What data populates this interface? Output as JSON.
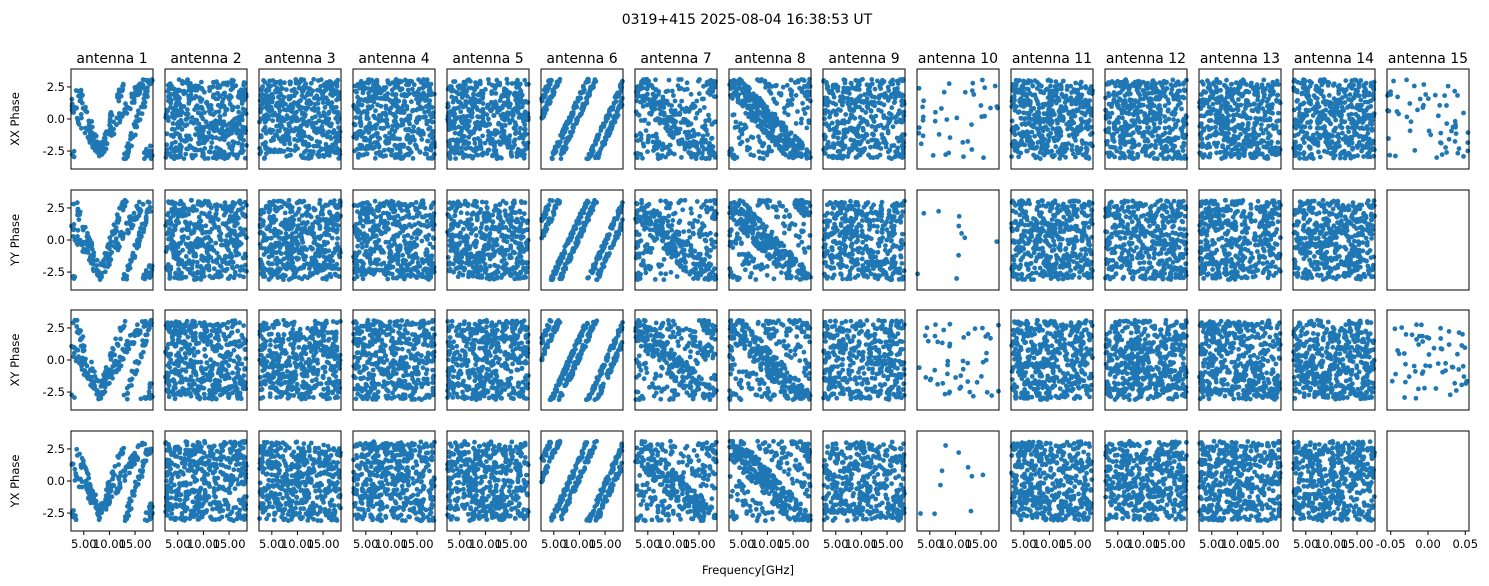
{
  "figure": {
    "title": "0319+415 2025-08-04 16:38:53 UT",
    "xlabel": "Frequency[GHz]"
  },
  "chart_data": {
    "type": "scatter",
    "title": "0319+415 2025-08-04 16:38:53 UT",
    "xlabel": "Frequency[GHz]",
    "marker_color": "#1f77b4",
    "grid": false,
    "legend": "none",
    "ylim": [
      -3.9,
      3.9
    ],
    "yticks": [
      {
        "value": 2.5,
        "label": "2.5"
      },
      {
        "value": 0.0,
        "label": "0.0"
      },
      {
        "value": -2.5,
        "label": "-2.5"
      }
    ],
    "xlim": [
      2.5,
      18.5
    ],
    "xticks": [
      {
        "value": 5.0,
        "label": "5.00"
      },
      {
        "value": 10.0,
        "label": "10.00"
      },
      {
        "value": 15.0,
        "label": "15.00"
      }
    ],
    "empty_xlim": [
      -0.055,
      0.055
    ],
    "empty_xticks": [
      {
        "value": -0.05,
        "label": "-0.05"
      },
      {
        "value": 0.0,
        "label": "0.00"
      },
      {
        "value": 0.05,
        "label": "0.05"
      }
    ],
    "antennas": [
      "antenna 1",
      "antenna 2",
      "antenna 3",
      "antenna 4",
      "antenna 5",
      "antenna 6",
      "antenna 7",
      "antenna 8",
      "antenna 9",
      "antenna 10",
      "antenna 11",
      "antenna 12",
      "antenna 13",
      "antenna 14",
      "antenna 15"
    ],
    "rows": [
      "XX Phase",
      "YY Phase",
      "XY Phase",
      "YX Phase"
    ],
    "panels": [
      [
        {
          "pattern": "v",
          "n": 260
        },
        {
          "pattern": "random",
          "n": 480
        },
        {
          "pattern": "random",
          "n": 480
        },
        {
          "pattern": "random",
          "n": 480
        },
        {
          "pattern": "random",
          "n": 480
        },
        {
          "pattern": "stripes",
          "n": 360
        },
        {
          "pattern": "diag",
          "n": 380
        },
        {
          "pattern": "diag-neg",
          "n": 420
        },
        {
          "pattern": "random",
          "n": 420
        },
        {
          "pattern": "sparse",
          "n": 40
        },
        {
          "pattern": "random",
          "n": 480
        },
        {
          "pattern": "random",
          "n": 480
        },
        {
          "pattern": "random",
          "n": 480
        },
        {
          "pattern": "random",
          "n": 480
        },
        {
          "pattern": "sparse",
          "n": 60
        }
      ],
      [
        {
          "pattern": "v",
          "n": 260
        },
        {
          "pattern": "random",
          "n": 480
        },
        {
          "pattern": "random",
          "n": 480
        },
        {
          "pattern": "random",
          "n": 480
        },
        {
          "pattern": "random",
          "n": 480
        },
        {
          "pattern": "stripes",
          "n": 360
        },
        {
          "pattern": "diag",
          "n": 380
        },
        {
          "pattern": "diag-neg",
          "n": 420
        },
        {
          "pattern": "random",
          "n": 420
        },
        {
          "pattern": "sparse",
          "n": 10
        },
        {
          "pattern": "random",
          "n": 480
        },
        {
          "pattern": "random",
          "n": 480
        },
        {
          "pattern": "random",
          "n": 480
        },
        {
          "pattern": "random",
          "n": 480
        },
        {
          "pattern": "empty",
          "n": 0
        }
      ],
      [
        {
          "pattern": "v",
          "n": 260
        },
        {
          "pattern": "random",
          "n": 480
        },
        {
          "pattern": "random",
          "n": 480
        },
        {
          "pattern": "random",
          "n": 480
        },
        {
          "pattern": "random",
          "n": 480
        },
        {
          "pattern": "stripes",
          "n": 360
        },
        {
          "pattern": "diag",
          "n": 380
        },
        {
          "pattern": "diag-neg",
          "n": 420
        },
        {
          "pattern": "random",
          "n": 420
        },
        {
          "pattern": "sparse",
          "n": 50
        },
        {
          "pattern": "random",
          "n": 480
        },
        {
          "pattern": "random",
          "n": 480
        },
        {
          "pattern": "random",
          "n": 480
        },
        {
          "pattern": "random",
          "n": 480
        },
        {
          "pattern": "sparse",
          "n": 60
        }
      ],
      [
        {
          "pattern": "v",
          "n": 260
        },
        {
          "pattern": "random",
          "n": 480
        },
        {
          "pattern": "random",
          "n": 480
        },
        {
          "pattern": "random",
          "n": 480
        },
        {
          "pattern": "random",
          "n": 480
        },
        {
          "pattern": "stripes",
          "n": 360
        },
        {
          "pattern": "diag",
          "n": 380
        },
        {
          "pattern": "diag-neg",
          "n": 420
        },
        {
          "pattern": "random",
          "n": 420
        },
        {
          "pattern": "sparse",
          "n": 10
        },
        {
          "pattern": "random",
          "n": 480
        },
        {
          "pattern": "random",
          "n": 480
        },
        {
          "pattern": "random",
          "n": 480
        },
        {
          "pattern": "random",
          "n": 480
        },
        {
          "pattern": "empty",
          "n": 0
        }
      ]
    ]
  }
}
